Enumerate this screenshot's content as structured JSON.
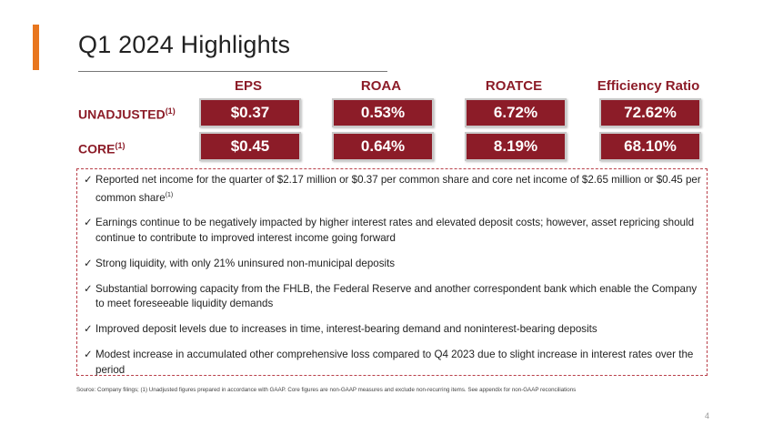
{
  "slide": {
    "title": "Q1 2024 Highlights",
    "page_number": "4",
    "accent_color": "#e8761e",
    "brand_color": "#8c1c28"
  },
  "metrics": {
    "headers": [
      "EPS",
      "ROAA",
      "ROATCE",
      "Efficiency Ratio"
    ],
    "rows": [
      {
        "label": "UNADJUSTED",
        "note": "(1)",
        "values": [
          "$0.37",
          "0.53%",
          "6.72%",
          "72.62%"
        ]
      },
      {
        "label": "CORE",
        "note": "(1)",
        "values": [
          "$0.45",
          "0.64%",
          "8.19%",
          "68.10%"
        ]
      }
    ]
  },
  "bullets": [
    {
      "check": "✓",
      "text": "Reported net income for the quarter of $2.17 million or $0.37 per common share and core net income of $2.65 million or $0.45 per common share",
      "note": "(1)"
    },
    {
      "check": "✓",
      "text": "Earnings continue to be negatively impacted by higher interest rates and elevated deposit costs; however, asset repricing should continue to contribute to improved interest income going forward"
    },
    {
      "check": "✓",
      "text": "Strong liquidity, with only 21% uninsured non-municipal deposits"
    },
    {
      "check": "✓",
      "text": "Substantial borrowing capacity from the FHLB, the Federal Reserve and another correspondent bank which enable the Company to meet foreseeable liquidity demands"
    },
    {
      "check": "✓",
      "text": "Improved deposit levels due to increases in time, interest-bearing demand and noninterest-bearing deposits"
    },
    {
      "check": "✓",
      "text": "Modest increase in accumulated other comprehensive loss compared to Q4 2023 due to slight increase in interest rates over the period"
    }
  ],
  "footnote": "Source: Company filings; (1) Unadjusted figures prepared in accordance with GAAP. Core figures are non-GAAP measures and exclude non-recurring items. See appendix for non-GAAP reconciliations"
}
